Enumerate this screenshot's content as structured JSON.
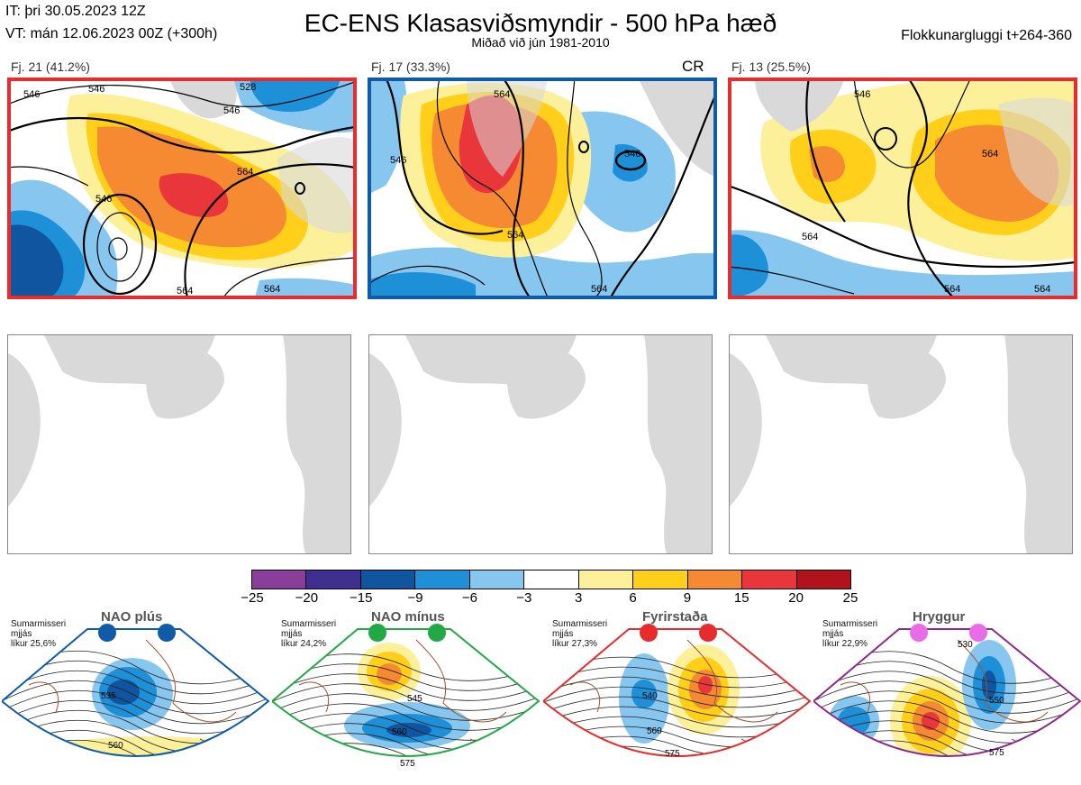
{
  "header": {
    "it": "IT: þri 30.05.2023 12Z",
    "vt": "VT: mán 12.06.2023 00Z  (+300h)",
    "title": "EC-ENS Klasasviðsmyndir - 500 hPa hæð",
    "subtitle": "Miðað við jún 1981-2010",
    "window": "Flokkunargluggi t+264-360"
  },
  "clusters": [
    {
      "label": "Fj. 21 (41.2%)",
      "frame_color": "#e62c2c",
      "contours": [
        "546",
        "546",
        "528",
        "546",
        "564",
        "546",
        "564",
        "564"
      ]
    },
    {
      "label": "Fj. 17 (33.3%)",
      "frame_color": "#0e5ba8",
      "badge": "CR",
      "contours": [
        "564",
        "546",
        "546",
        "564",
        "564"
      ]
    },
    {
      "label": "Fj. 13 (25.5%)",
      "frame_color": "#e62c2c",
      "contours": [
        "546",
        "564",
        "564",
        "564",
        "564"
      ]
    }
  ],
  "color_scale": {
    "ticks": [
      "−25",
      "−20",
      "−15",
      "−9",
      "−6",
      "−3",
      "3",
      "6",
      "9",
      "15",
      "20",
      "25"
    ],
    "colors": [
      "#8a3d9a",
      "#3f2f90",
      "#0f55a0",
      "#1e90d8",
      "#87c6ee",
      "#ffffff",
      "#fdf09a",
      "#ffcf1a",
      "#f58a33",
      "#e8363a",
      "#b2121b"
    ]
  },
  "regimes": [
    {
      "name": "NAO plús",
      "note": [
        "Sumarmisseri",
        "mjjás",
        "líkur 25,6%"
      ],
      "color": "#0e5ba8",
      "contours": [
        "535",
        "560"
      ]
    },
    {
      "name": "NAO mínus",
      "note": [
        "Sumarmisseri",
        "mjjás",
        "líkur 24,2%"
      ],
      "color": "#22a845",
      "contours": [
        "545",
        "560",
        "575"
      ]
    },
    {
      "name": "Fyrirstaða",
      "note": [
        "Sumarmisseri",
        "mjjás",
        "líkur 27,3%"
      ],
      "color": "#e62c2c",
      "contours": [
        "540",
        "560",
        "575"
      ]
    },
    {
      "name": "Hryggur",
      "note": [
        "Sumarmisseri",
        "mjjás",
        "líkur 22,9%"
      ],
      "color": "#8b2a8b",
      "contours": [
        "530",
        "550",
        "575"
      ]
    }
  ]
}
